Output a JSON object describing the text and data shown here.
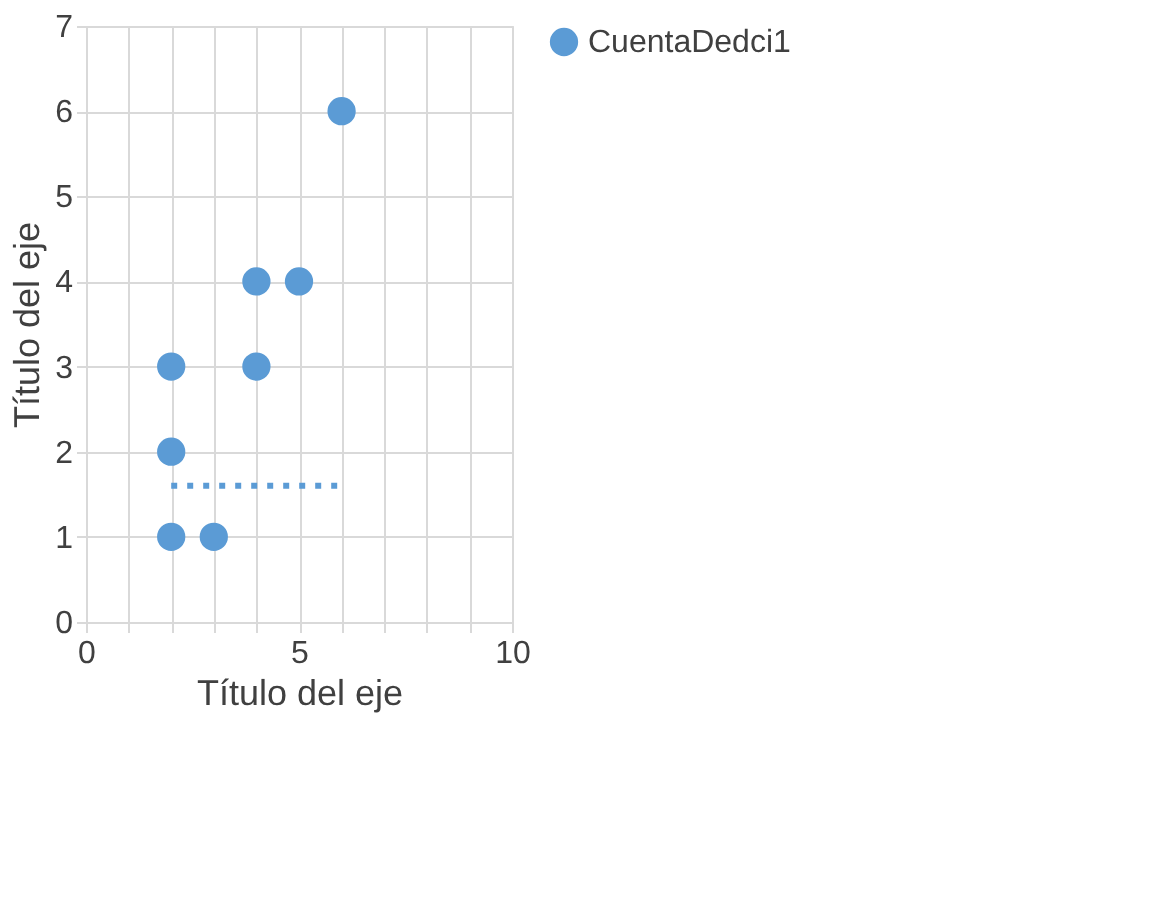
{
  "chart_data": {
    "type": "scatter",
    "xlabel": "Título del eje",
    "ylabel": "Título del eje",
    "series": [
      {
        "name": "CuentaDedci1",
        "color": "#5b9bd5",
        "marker": "circle",
        "x": [
          2,
          3,
          2,
          2,
          4,
          4,
          5,
          6
        ],
        "values": [
          1,
          1,
          2,
          3,
          3,
          4,
          4,
          6
        ]
      },
      {
        "color": "#5b9bd5",
        "type": "line",
        "line_style": "dotted",
        "marker": "none",
        "x": [
          2,
          6
        ],
        "values": [
          1.6,
          1.6
        ]
      }
    ],
    "xlim": [
      0,
      10
    ],
    "ylim": [
      0,
      7
    ],
    "xticks": [
      0,
      {
        "value": 1,
        "label": null
      },
      {
        "value": 2,
        "label": null
      },
      {
        "value": 3,
        "label": null
      },
      {
        "value": 4,
        "label": null
      },
      5,
      {
        "value": 6,
        "label": null
      },
      {
        "value": 7,
        "label": null
      },
      {
        "value": 8,
        "label": null
      },
      {
        "value": 9,
        "label": null
      },
      10
    ],
    "yticks": [
      0,
      1,
      2,
      3,
      4,
      5,
      6,
      7
    ],
    "grid": true,
    "legend": "right"
  }
}
